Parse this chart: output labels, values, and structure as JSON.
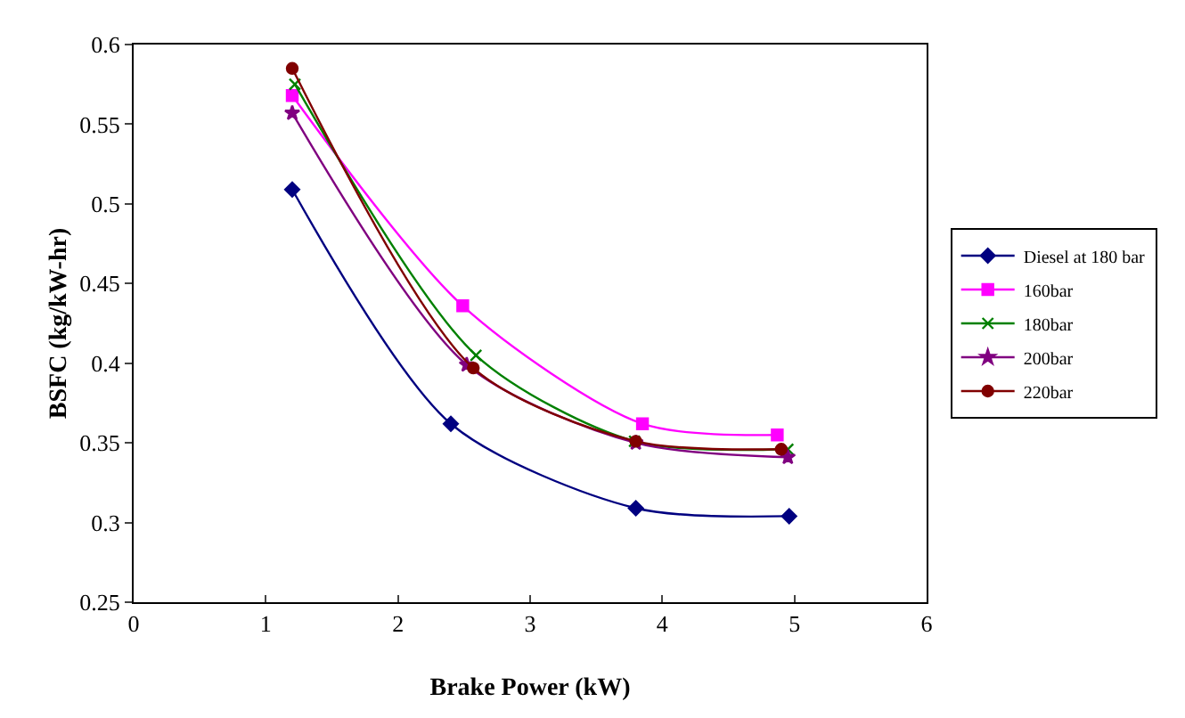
{
  "chart_data": {
    "type": "line",
    "xlabel": "Brake Power (kW)",
    "ylabel": "BSFC (kg/kW-hr)",
    "xlim": [
      0,
      6
    ],
    "xticks": [
      0,
      1,
      2,
      3,
      4,
      5,
      6
    ],
    "ylim": [
      0.25,
      0.6
    ],
    "yticks": [
      0.25,
      0.3,
      0.35,
      0.4,
      0.45,
      0.5,
      0.55,
      0.6
    ],
    "grid": false,
    "legend": "right",
    "line_style": "solid",
    "series": [
      {
        "name": "Diesel at 180 bar",
        "color": "#000080",
        "marker": "diamond",
        "x": [
          1.2,
          2.4,
          3.8,
          4.96
        ],
        "values": [
          0.509,
          0.362,
          0.309,
          0.304
        ]
      },
      {
        "name": "160bar",
        "color": "#ff00ff",
        "marker": "square",
        "x": [
          1.2,
          2.49,
          3.85,
          4.87
        ],
        "values": [
          0.568,
          0.436,
          0.362,
          0.355
        ]
      },
      {
        "name": "180bar",
        "color": "#008000",
        "marker": "cross",
        "x": [
          1.22,
          2.59,
          3.79,
          4.95
        ],
        "values": [
          0.575,
          0.405,
          0.351,
          0.346
        ]
      },
      {
        "name": "200bar",
        "color": "#800080",
        "marker": "star",
        "x": [
          1.2,
          2.52,
          3.8,
          4.95
        ],
        "values": [
          0.557,
          0.399,
          0.35,
          0.341
        ]
      },
      {
        "name": "220bar",
        "color": "#800000",
        "marker": "circle",
        "x": [
          1.2,
          2.57,
          3.8,
          4.9
        ],
        "values": [
          0.585,
          0.397,
          0.351,
          0.346
        ]
      }
    ]
  }
}
